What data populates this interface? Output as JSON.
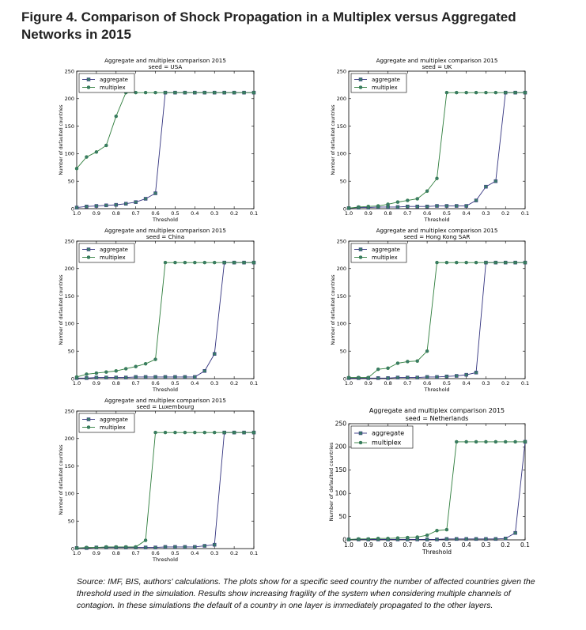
{
  "figure": {
    "title": "Figure 4. Comparison of Shock Propagation in a Multiplex versus Aggregated Networks in 2015",
    "source": "Source: IMF, BIS, authors' calculations. The plots show for a specific seed country the number of affected countries given the threshold used in the simulation. Results show increasing fragility of the system when considering multiple channels of contagion. In these simulations the default of a country in one layer is immediately propagated to the other layers."
  },
  "colors": {
    "aggregate": "#33337f",
    "multiplex": "#2e7d3c",
    "marker_face": "#3a7a6a"
  },
  "chart_data": [
    {
      "type": "line",
      "title": "Aggregate and multiplex comparison 2015",
      "subtitle": "seed = USA",
      "xlabel": "Threshold",
      "ylabel": "Number of defaulted countries",
      "xlim": [
        1.0,
        0.1
      ],
      "ylim": [
        0,
        250
      ],
      "xticks": [
        "1.0",
        "0.9",
        "0.8",
        "0.7",
        "0.6",
        "0.5",
        "0.4",
        "0.3",
        "0.2",
        "0.1"
      ],
      "yticks": [
        "0",
        "50",
        "100",
        "150",
        "200",
        "250"
      ],
      "grid": false,
      "legend": "top-left",
      "x": [
        1.0,
        0.95,
        0.9,
        0.85,
        0.8,
        0.75,
        0.7,
        0.65,
        0.6,
        0.55,
        0.5,
        0.45,
        0.4,
        0.35,
        0.3,
        0.25,
        0.2,
        0.15,
        0.1
      ],
      "series": [
        {
          "name": "aggregate",
          "values": [
            2,
            4,
            5,
            6,
            7,
            9,
            12,
            18,
            28,
            211,
            211,
            211,
            211,
            211,
            211,
            211,
            211,
            211,
            211
          ]
        },
        {
          "name": "multiplex",
          "values": [
            73,
            94,
            103,
            115,
            168,
            211,
            211,
            211,
            211,
            211,
            211,
            211,
            211,
            211,
            211,
            211,
            211,
            211,
            211
          ]
        }
      ]
    },
    {
      "type": "line",
      "title": "Aggregate and multiplex comparison 2015",
      "subtitle": "seed = UK",
      "xlabel": "Threshold",
      "ylabel": "Number of defaulted countries",
      "xlim": [
        1.0,
        0.1
      ],
      "ylim": [
        0,
        250
      ],
      "xticks": [
        "1.0",
        "0.9",
        "0.8",
        "0.7",
        "0.6",
        "0.5",
        "0.4",
        "0.3",
        "0.2",
        "0.1"
      ],
      "yticks": [
        "0",
        "50",
        "100",
        "150",
        "200",
        "250"
      ],
      "grid": false,
      "legend": "top-left",
      "x": [
        1.0,
        0.95,
        0.9,
        0.85,
        0.8,
        0.75,
        0.7,
        0.65,
        0.6,
        0.55,
        0.5,
        0.45,
        0.4,
        0.35,
        0.3,
        0.25,
        0.2,
        0.15,
        0.1
      ],
      "series": [
        {
          "name": "aggregate",
          "values": [
            1,
            2,
            2,
            3,
            3,
            3,
            4,
            4,
            4,
            5,
            5,
            5,
            5,
            15,
            40,
            50,
            211,
            211,
            211
          ]
        },
        {
          "name": "multiplex",
          "values": [
            1,
            3,
            4,
            5,
            8,
            12,
            15,
            18,
            32,
            55,
            211,
            211,
            211,
            211,
            211,
            211,
            211,
            211,
            211
          ]
        }
      ]
    },
    {
      "type": "line",
      "title": "Aggregate and multiplex comparison 2015",
      "subtitle": "seed = China",
      "xlabel": "Threshold",
      "ylabel": "Number of defaulted countries",
      "xlim": [
        1.0,
        0.1
      ],
      "ylim": [
        0,
        250
      ],
      "xticks": [
        "1.0",
        "0.9",
        "0.8",
        "0.7",
        "0.6",
        "0.5",
        "0.4",
        "0.3",
        "0.2",
        "0.1"
      ],
      "yticks": [
        "0",
        "50",
        "100",
        "150",
        "200",
        "250"
      ],
      "grid": false,
      "legend": "top-left",
      "x": [
        1.0,
        0.95,
        0.9,
        0.85,
        0.8,
        0.75,
        0.7,
        0.65,
        0.6,
        0.55,
        0.5,
        0.45,
        0.4,
        0.35,
        0.3,
        0.25,
        0.2,
        0.15,
        0.1
      ],
      "series": [
        {
          "name": "aggregate",
          "values": [
            1,
            1,
            2,
            2,
            2,
            2,
            3,
            3,
            3,
            3,
            3,
            3,
            3,
            14,
            45,
            211,
            211,
            211,
            211
          ]
        },
        {
          "name": "multiplex",
          "values": [
            3,
            8,
            10,
            12,
            14,
            18,
            22,
            27,
            35,
            211,
            211,
            211,
            211,
            211,
            211,
            211,
            211,
            211,
            211
          ]
        }
      ]
    },
    {
      "type": "line",
      "title": "Aggregate and multiplex comparison 2015",
      "subtitle": "seed = Hong Kong SAR",
      "xlabel": "Threshold",
      "ylabel": "Number of defaulted countries",
      "xlim": [
        1.0,
        0.1
      ],
      "ylim": [
        0,
        250
      ],
      "xticks": [
        "1.0",
        "0.9",
        "0.8",
        "0.7",
        "0.6",
        "0.5",
        "0.4",
        "0.3",
        "0.2",
        "0.1"
      ],
      "yticks": [
        "0",
        "50",
        "100",
        "150",
        "200",
        "250"
      ],
      "grid": false,
      "legend": "top-left",
      "x": [
        1.0,
        0.95,
        0.9,
        0.85,
        0.8,
        0.75,
        0.7,
        0.65,
        0.6,
        0.55,
        0.5,
        0.45,
        0.4,
        0.35,
        0.3,
        0.25,
        0.2,
        0.15,
        0.1
      ],
      "series": [
        {
          "name": "aggregate",
          "values": [
            1,
            1,
            1,
            1,
            1,
            2,
            2,
            2,
            3,
            3,
            4,
            5,
            7,
            11,
            211,
            211,
            211,
            211,
            211
          ]
        },
        {
          "name": "multiplex",
          "values": [
            2,
            2,
            2,
            17,
            19,
            28,
            31,
            32,
            50,
            211,
            211,
            211,
            211,
            211,
            211,
            211,
            211,
            211,
            211
          ]
        }
      ]
    },
    {
      "type": "line",
      "title": "Aggregate and multiplex comparison 2015",
      "subtitle": "seed = Luxembourg",
      "xlabel": "Threshold",
      "ylabel": "Number of defaulted countries",
      "xlim": [
        1.0,
        0.1
      ],
      "ylim": [
        0,
        250
      ],
      "xticks": [
        "1.0",
        "0.9",
        "0.8",
        "0.7",
        "0.6",
        "0.5",
        "0.4",
        "0.3",
        "0.2",
        "0.1"
      ],
      "yticks": [
        "0",
        "50",
        "100",
        "150",
        "200",
        "250"
      ],
      "grid": false,
      "legend": "top-left",
      "x": [
        1.0,
        0.95,
        0.9,
        0.85,
        0.8,
        0.75,
        0.7,
        0.65,
        0.6,
        0.55,
        0.5,
        0.45,
        0.4,
        0.35,
        0.3,
        0.25,
        0.2,
        0.15,
        0.1
      ],
      "series": [
        {
          "name": "aggregate",
          "values": [
            1,
            1,
            2,
            2,
            2,
            2,
            2,
            2,
            2,
            3,
            3,
            3,
            3,
            5,
            7,
            211,
            211,
            211,
            211
          ]
        },
        {
          "name": "multiplex",
          "values": [
            1,
            2,
            2,
            3,
            3,
            3,
            3,
            15,
            211,
            211,
            211,
            211,
            211,
            211,
            211,
            211,
            211,
            211,
            211
          ]
        }
      ]
    },
    {
      "type": "line",
      "title": "Aggregate and multiplex comparison 2015",
      "subtitle": "seed = Netherlands",
      "xlabel": "Threshold",
      "ylabel": "Number of defaulted countries",
      "xlim": [
        1.0,
        0.1
      ],
      "ylim": [
        0,
        250
      ],
      "xticks": [
        "1.0",
        "0.9",
        "0.8",
        "0.7",
        "0.6",
        "0.5",
        "0.4",
        "0.3",
        "0.2",
        "0.1"
      ],
      "yticks": [
        "0",
        "50",
        "100",
        "150",
        "200",
        "250"
      ],
      "grid": false,
      "legend": "top-left",
      "x": [
        1.0,
        0.95,
        0.9,
        0.85,
        0.8,
        0.75,
        0.7,
        0.65,
        0.6,
        0.55,
        0.5,
        0.45,
        0.4,
        0.35,
        0.3,
        0.25,
        0.2,
        0.15,
        0.1
      ],
      "series": [
        {
          "name": "aggregate",
          "values": [
            1,
            1,
            1,
            1,
            1,
            1,
            1,
            1,
            1,
            1,
            2,
            2,
            2,
            2,
            2,
            2,
            3,
            15,
            211
          ]
        },
        {
          "name": "multiplex",
          "values": [
            1,
            2,
            2,
            3,
            3,
            4,
            5,
            6,
            10,
            20,
            22,
            211,
            211,
            211,
            211,
            211,
            211,
            211,
            211
          ]
        }
      ]
    }
  ]
}
